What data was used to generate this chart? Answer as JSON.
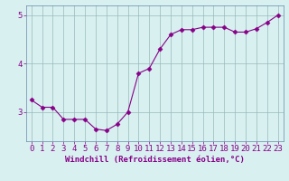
{
  "x": [
    0,
    1,
    2,
    3,
    4,
    5,
    6,
    7,
    8,
    9,
    10,
    11,
    12,
    13,
    14,
    15,
    16,
    17,
    18,
    19,
    20,
    21,
    22,
    23
  ],
  "y": [
    3.25,
    3.1,
    3.1,
    2.85,
    2.85,
    2.85,
    2.65,
    2.62,
    2.75,
    3.0,
    3.8,
    3.9,
    4.3,
    4.6,
    4.7,
    4.7,
    4.75,
    4.75,
    4.75,
    4.65,
    4.65,
    4.72,
    4.85,
    5.0
  ],
  "line_color": "#880088",
  "marker": "D",
  "marker_size": 2.5,
  "bg_color": "#d8f0f0",
  "grid_color": "#9ab8b8",
  "xlabel": "Windchill (Refroidissement éolien,°C)",
  "xlim": [
    -0.5,
    23.5
  ],
  "ylim": [
    2.4,
    5.2
  ],
  "yticks": [
    3,
    4,
    5
  ],
  "xticks": [
    0,
    1,
    2,
    3,
    4,
    5,
    6,
    7,
    8,
    9,
    10,
    11,
    12,
    13,
    14,
    15,
    16,
    17,
    18,
    19,
    20,
    21,
    22,
    23
  ],
  "xlabel_fontsize": 6.5,
  "tick_fontsize": 6.5,
  "label_color": "#880088",
  "spine_color": "#6688aa"
}
